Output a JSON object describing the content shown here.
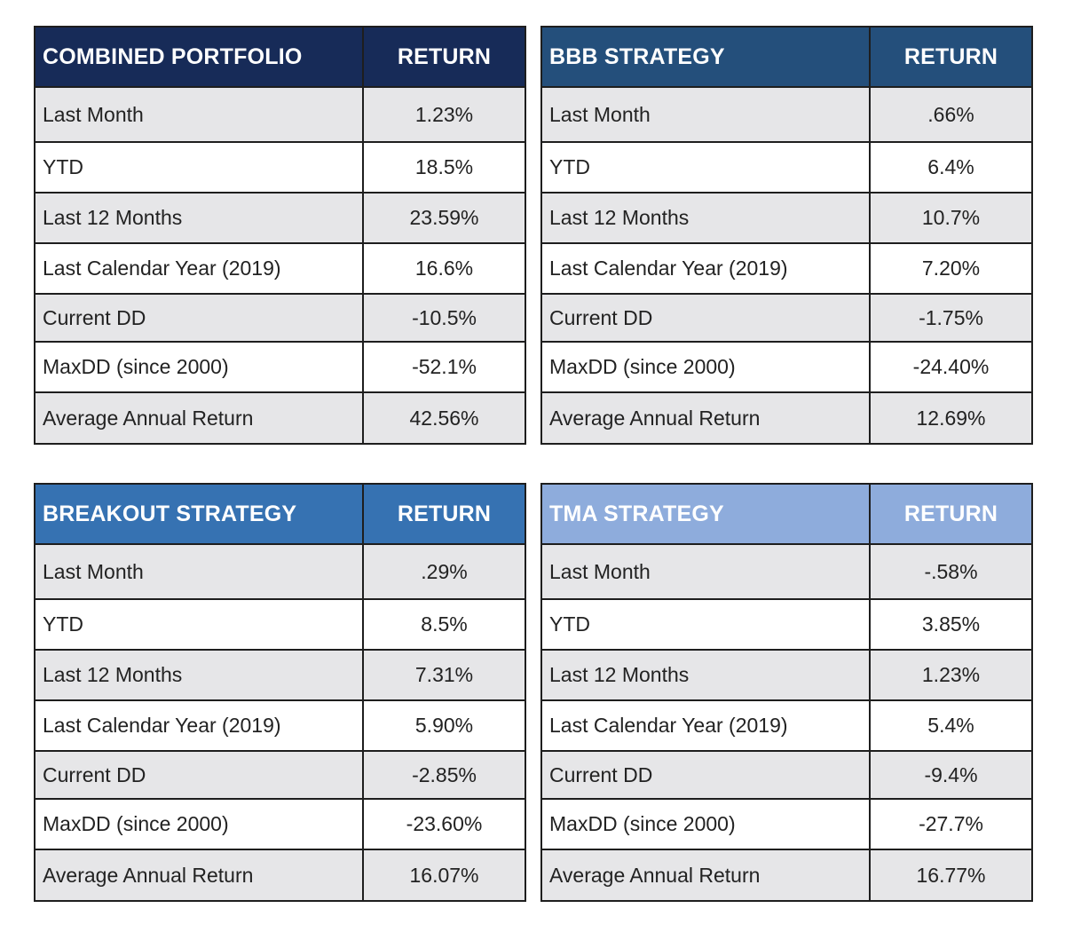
{
  "tables": [
    {
      "title": "COMBINED PORTFOLIO",
      "return_label": "RETURN",
      "header_color": "#172b58",
      "rows": [
        {
          "label": "Last Month",
          "value": "1.23%"
        },
        {
          "label": "YTD",
          "value": "18.5%"
        },
        {
          "label": "Last 12 Months",
          "value": "23.59%"
        },
        {
          "label": "Last Calendar Year (2019)",
          "value": "16.6%"
        },
        {
          "label": "Current DD",
          "value": "-10.5%"
        },
        {
          "label": "MaxDD (since 2000)",
          "value": "-52.1%"
        },
        {
          "label": "Average Annual Return",
          "value": "42.56%"
        }
      ]
    },
    {
      "title": "BBB STRATEGY",
      "return_label": "RETURN",
      "header_color": "#244f7b",
      "rows": [
        {
          "label": "Last Month",
          "value": ".66%"
        },
        {
          "label": "YTD",
          "value": "6.4%"
        },
        {
          "label": "Last 12 Months",
          "value": "10.7%"
        },
        {
          "label": "Last Calendar Year (2019)",
          "value": "7.20%"
        },
        {
          "label": "Current DD",
          "value": "-1.75%"
        },
        {
          "label": "MaxDD (since 2000)",
          "value": "-24.40%"
        },
        {
          "label": "Average Annual Return",
          "value": "12.69%"
        }
      ]
    },
    {
      "title": "BREAKOUT STRATEGY",
      "return_label": "RETURN",
      "header_color": "#3672b2",
      "rows": [
        {
          "label": "Last Month",
          "value": ".29%"
        },
        {
          "label": "YTD",
          "value": "8.5%"
        },
        {
          "label": "Last 12 Months",
          "value": "7.31%"
        },
        {
          "label": "Last Calendar Year (2019)",
          "value": "5.90%"
        },
        {
          "label": "Current DD",
          "value": "-2.85%"
        },
        {
          "label": "MaxDD (since 2000)",
          "value": "-23.60%"
        },
        {
          "label": "Average Annual Return",
          "value": "16.07%"
        }
      ]
    },
    {
      "title": "TMA STRATEGY",
      "return_label": "RETURN",
      "header_color": "#8eacdc",
      "rows": [
        {
          "label": "Last Month",
          "value": "-.58%"
        },
        {
          "label": "YTD",
          "value": "3.85%"
        },
        {
          "label": "Last 12 Months",
          "value": "1.23%"
        },
        {
          "label": "Last Calendar Year (2019)",
          "value": "5.4%"
        },
        {
          "label": "Current DD",
          "value": "-9.4%"
        },
        {
          "label": "MaxDD (since 2000)",
          "value": "-27.7%"
        },
        {
          "label": "Average Annual Return",
          "value": "16.77%"
        }
      ]
    }
  ]
}
